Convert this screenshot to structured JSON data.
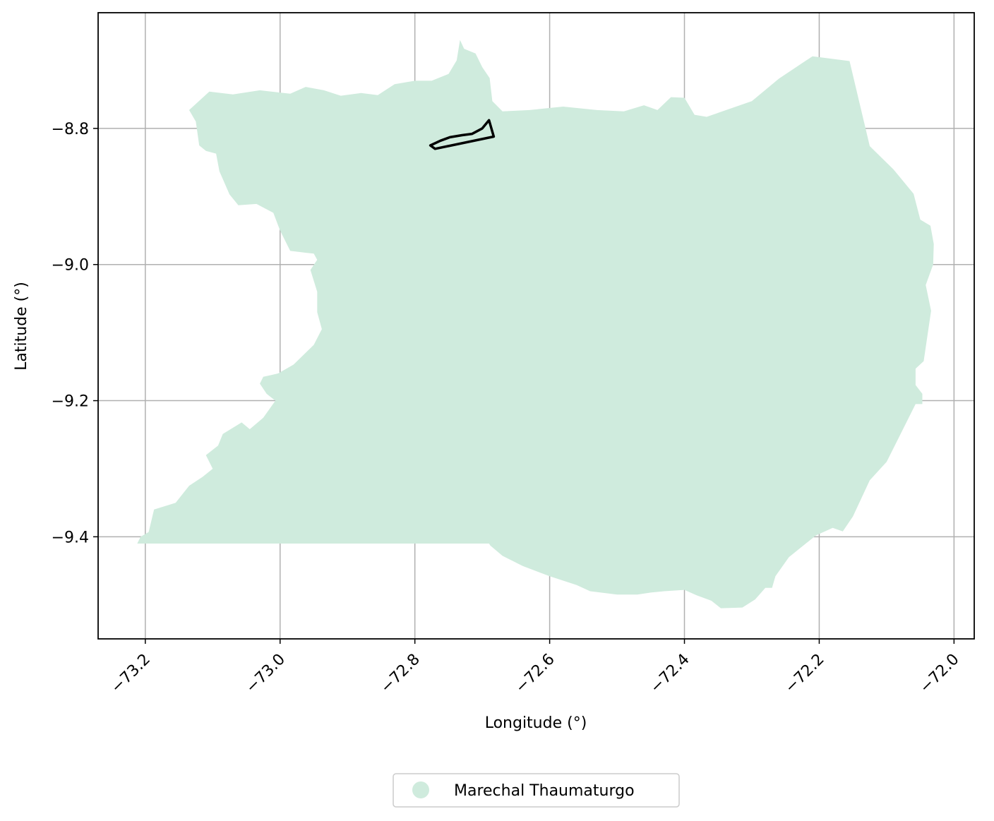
{
  "chart_data": {
    "type": "map",
    "xlabel": "Longitude (°)",
    "ylabel": "Latitude (°)",
    "xlim": [
      -73.27,
      -71.97
    ],
    "ylim": [
      -9.55,
      -8.63
    ],
    "grid": true,
    "xticks": [
      {
        "value": -73.2,
        "label": "−73.2"
      },
      {
        "value": -73.0,
        "label": "−73.0"
      },
      {
        "value": -72.8,
        "label": "−72.8"
      },
      {
        "value": -72.6,
        "label": "−72.6"
      },
      {
        "value": -72.4,
        "label": "−72.4"
      },
      {
        "value": -72.2,
        "label": "−72.2"
      },
      {
        "value": -72.0,
        "label": "−72.0"
      }
    ],
    "yticks": [
      {
        "value": -8.8,
        "label": "−8.8"
      },
      {
        "value": -9.0,
        "label": "−9.0"
      },
      {
        "value": -9.2,
        "label": "−9.2"
      },
      {
        "value": -9.4,
        "label": "−9.4"
      }
    ],
    "legend": {
      "placement": "bottom-center",
      "label": "Marechal Thaumaturgo"
    },
    "region": {
      "name": "Marechal Thaumaturgo",
      "color": "#cfebdd",
      "boundary": [
        [
          -73.135,
          -8.773
        ],
        [
          -73.105,
          -8.746
        ],
        [
          -73.07,
          -8.75
        ],
        [
          -73.03,
          -8.744
        ],
        [
          -72.985,
          -8.749
        ],
        [
          -72.962,
          -8.739
        ],
        [
          -72.935,
          -8.744
        ],
        [
          -72.91,
          -8.752
        ],
        [
          -72.88,
          -8.748
        ],
        [
          -72.855,
          -8.751
        ],
        [
          -72.83,
          -8.735
        ],
        [
          -72.8,
          -8.73
        ],
        [
          -72.775,
          -8.73
        ],
        [
          -72.75,
          -8.72
        ],
        [
          -72.738,
          -8.7
        ],
        [
          -72.733,
          -8.67
        ],
        [
          -72.727,
          -8.683
        ],
        [
          -72.71,
          -8.69
        ],
        [
          -72.7,
          -8.71
        ],
        [
          -72.689,
          -8.726
        ],
        [
          -72.685,
          -8.76
        ],
        [
          -72.67,
          -8.775
        ],
        [
          -72.63,
          -8.773
        ],
        [
          -72.58,
          -8.768
        ],
        [
          -72.53,
          -8.773
        ],
        [
          -72.49,
          -8.775
        ],
        [
          -72.46,
          -8.766
        ],
        [
          -72.44,
          -8.773
        ],
        [
          -72.42,
          -8.754
        ],
        [
          -72.4,
          -8.755
        ],
        [
          -72.385,
          -8.78
        ],
        [
          -72.367,
          -8.783
        ],
        [
          -72.3,
          -8.76
        ],
        [
          -72.26,
          -8.727
        ],
        [
          -72.21,
          -8.694
        ],
        [
          -72.155,
          -8.701
        ],
        [
          -72.125,
          -8.826
        ],
        [
          -72.09,
          -8.86
        ],
        [
          -72.06,
          -8.896
        ],
        [
          -72.05,
          -8.934
        ],
        [
          -72.035,
          -8.943
        ],
        [
          -72.03,
          -8.97
        ],
        [
          -72.031,
          -9.0
        ],
        [
          -72.042,
          -9.03
        ],
        [
          -72.034,
          -9.068
        ],
        [
          -72.045,
          -9.142
        ],
        [
          -72.057,
          -9.153
        ],
        [
          -72.057,
          -9.177
        ],
        [
          -72.047,
          -9.19
        ],
        [
          -72.047,
          -9.205
        ],
        [
          -72.057,
          -9.205
        ],
        [
          -72.1,
          -9.29
        ],
        [
          -72.125,
          -9.317
        ],
        [
          -72.15,
          -9.37
        ],
        [
          -72.165,
          -9.392
        ],
        [
          -72.18,
          -9.387
        ],
        [
          -72.205,
          -9.398
        ],
        [
          -72.245,
          -9.43
        ],
        [
          -72.265,
          -9.458
        ],
        [
          -72.27,
          -9.475
        ],
        [
          -72.28,
          -9.475
        ],
        [
          -72.295,
          -9.492
        ],
        [
          -72.314,
          -9.504
        ],
        [
          -72.346,
          -9.505
        ],
        [
          -72.36,
          -9.494
        ],
        [
          -72.382,
          -9.486
        ],
        [
          -72.4,
          -9.478
        ],
        [
          -72.43,
          -9.48
        ],
        [
          -72.45,
          -9.482
        ],
        [
          -72.47,
          -9.485
        ],
        [
          -72.5,
          -9.485
        ],
        [
          -72.54,
          -9.48
        ],
        [
          -72.56,
          -9.471
        ],
        [
          -72.6,
          -9.458
        ],
        [
          -72.64,
          -9.443
        ],
        [
          -72.67,
          -9.428
        ],
        [
          -72.688,
          -9.413
        ],
        [
          -72.69,
          -9.41
        ],
        [
          -73.212,
          -9.41
        ],
        [
          -73.207,
          -9.4
        ],
        [
          -73.195,
          -9.393
        ],
        [
          -73.187,
          -9.36
        ],
        [
          -73.155,
          -9.35
        ],
        [
          -73.135,
          -9.325
        ],
        [
          -73.115,
          -9.312
        ],
        [
          -73.1,
          -9.3
        ],
        [
          -73.11,
          -9.28
        ],
        [
          -73.092,
          -9.266
        ],
        [
          -73.085,
          -9.249
        ],
        [
          -73.057,
          -9.232
        ],
        [
          -73.045,
          -9.242
        ],
        [
          -73.025,
          -9.225
        ],
        [
          -73.007,
          -9.2
        ],
        [
          -73.02,
          -9.19
        ],
        [
          -73.03,
          -9.175
        ],
        [
          -73.025,
          -9.165
        ],
        [
          -73.003,
          -9.16
        ],
        [
          -72.98,
          -9.147
        ],
        [
          -72.95,
          -9.118
        ],
        [
          -72.938,
          -9.095
        ],
        [
          -72.945,
          -9.07
        ],
        [
          -72.945,
          -9.04
        ],
        [
          -72.955,
          -9.008
        ],
        [
          -72.945,
          -8.993
        ],
        [
          -72.95,
          -8.984
        ],
        [
          -72.96,
          -8.983
        ],
        [
          -72.985,
          -8.98
        ],
        [
          -73.0,
          -8.95
        ],
        [
          -73.01,
          -8.924
        ],
        [
          -73.035,
          -8.911
        ],
        [
          -73.062,
          -8.913
        ],
        [
          -73.075,
          -8.897
        ],
        [
          -73.09,
          -8.863
        ],
        [
          -73.095,
          -8.837
        ],
        [
          -73.11,
          -8.833
        ],
        [
          -73.12,
          -8.825
        ],
        [
          -73.125,
          -8.79
        ],
        [
          -73.135,
          -8.773
        ]
      ]
    },
    "outline": {
      "color": "#000000",
      "boundary": [
        [
          -72.777,
          -8.825
        ],
        [
          -72.762,
          -8.818
        ],
        [
          -72.748,
          -8.813
        ],
        [
          -72.73,
          -8.81
        ],
        [
          -72.715,
          -8.808
        ],
        [
          -72.7,
          -8.8
        ],
        [
          -72.69,
          -8.788
        ],
        [
          -72.683,
          -8.812
        ],
        [
          -72.77,
          -8.83
        ],
        [
          -72.777,
          -8.825
        ]
      ]
    }
  }
}
